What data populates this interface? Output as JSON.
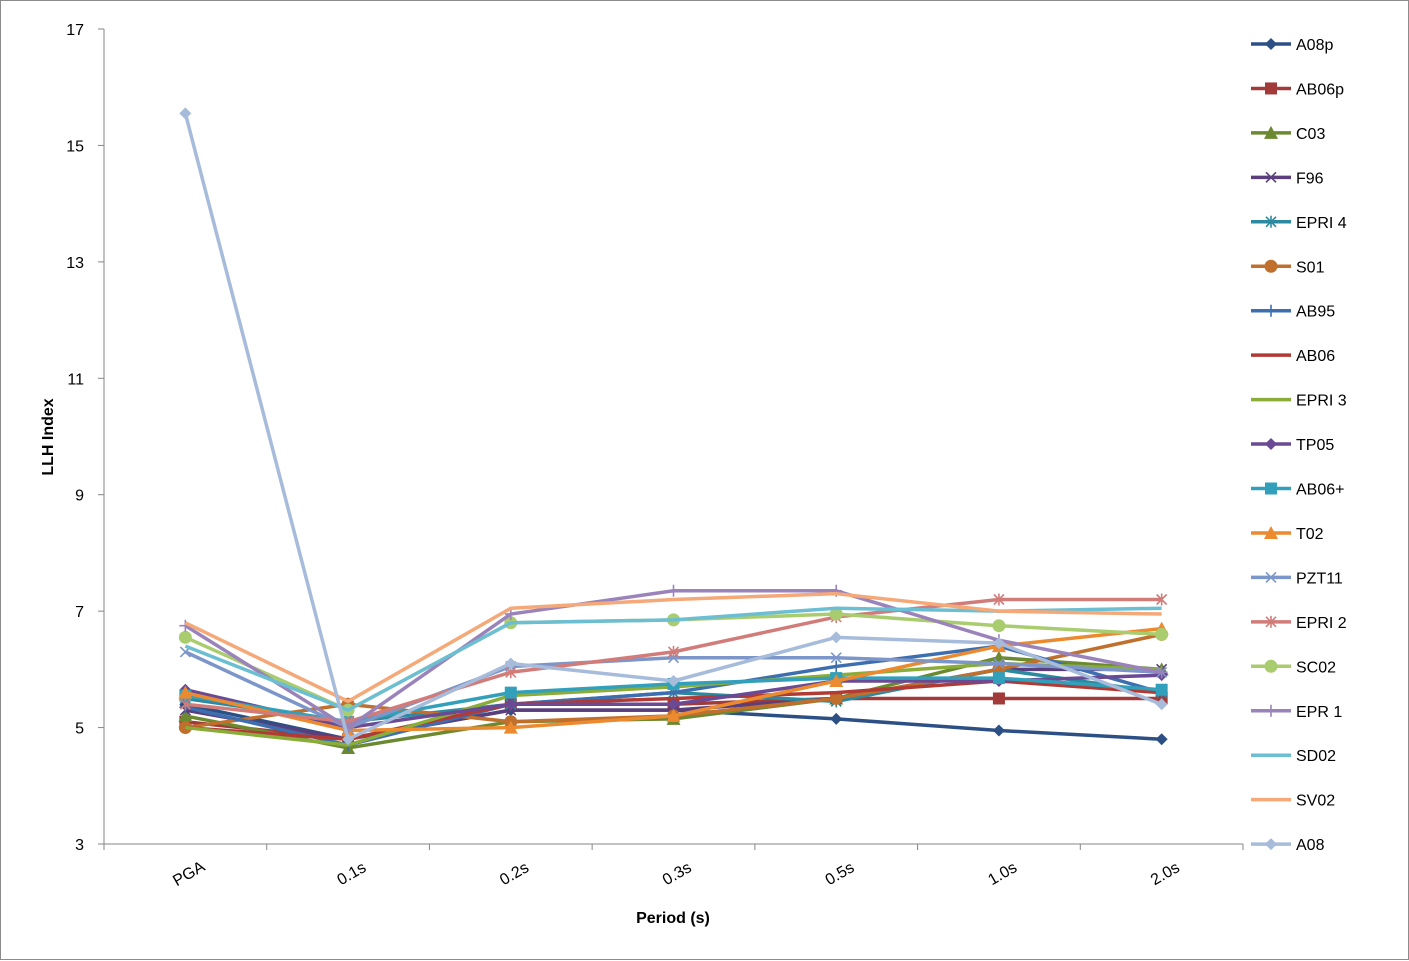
{
  "chart_data": {
    "type": "line",
    "xlabel": "Period (s)",
    "ylabel": "LLH Index",
    "categories": [
      "PGA",
      "0.1s",
      "0.2s",
      "0.3s",
      "0.5s",
      "1.0s",
      "2.0s"
    ],
    "ylim": [
      3,
      17
    ],
    "yticks": [
      3,
      5,
      7,
      9,
      11,
      13,
      15,
      17
    ],
    "grid": false,
    "legend_position": "right",
    "series": [
      {
        "name": "A08p",
        "color": "#2c5085",
        "marker": "diamond",
        "values": [
          5.4,
          4.8,
          5.3,
          5.3,
          5.15,
          4.95,
          4.8
        ]
      },
      {
        "name": "AB06p",
        "color": "#a13a38",
        "marker": "square",
        "values": [
          5.1,
          4.8,
          5.4,
          5.4,
          5.5,
          5.5,
          5.5
        ]
      },
      {
        "name": "C03",
        "color": "#6b8a30",
        "marker": "triangle",
        "values": [
          5.2,
          4.65,
          5.1,
          5.15,
          5.5,
          6.2,
          6.0
        ]
      },
      {
        "name": "F96",
        "color": "#5a3f7c",
        "marker": "x",
        "values": [
          5.3,
          4.8,
          5.3,
          5.3,
          5.5,
          6.0,
          6.0
        ]
      },
      {
        "name": "EPRI 4",
        "color": "#2c8aa0",
        "marker": "asterisk",
        "values": [
          5.5,
          5.1,
          5.4,
          5.6,
          5.45,
          6.0,
          5.6
        ]
      },
      {
        "name": "S01",
        "color": "#c06f2c",
        "marker": "circle",
        "values": [
          5.0,
          5.4,
          5.1,
          5.2,
          5.5,
          6.0,
          6.6
        ]
      },
      {
        "name": "AB95",
        "color": "#3d6eb0",
        "marker": "plus",
        "values": [
          5.35,
          4.7,
          5.4,
          5.6,
          6.05,
          6.4,
          5.6
        ]
      },
      {
        "name": "AB06",
        "color": "#b13b34",
        "marker": "none",
        "values": [
          5.0,
          4.8,
          5.4,
          5.5,
          5.6,
          5.8,
          5.6
        ]
      },
      {
        "name": "EPRI 3",
        "color": "#8aad3a",
        "marker": "none",
        "values": [
          5.0,
          4.7,
          5.55,
          5.7,
          5.9,
          6.1,
          6.0
        ]
      },
      {
        "name": "TP05",
        "color": "#6a4a94",
        "marker": "diamond",
        "values": [
          5.65,
          5.0,
          5.4,
          5.4,
          5.8,
          5.8,
          5.9
        ]
      },
      {
        "name": "AB06+",
        "color": "#33a0bb",
        "marker": "square",
        "values": [
          5.55,
          5.1,
          5.6,
          5.75,
          5.85,
          5.85,
          5.65
        ]
      },
      {
        "name": "T02",
        "color": "#ec8a30",
        "marker": "triangle",
        "values": [
          5.6,
          4.95,
          5.0,
          5.2,
          5.8,
          6.4,
          6.7
        ]
      },
      {
        "name": "PZT11",
        "color": "#7c96c9",
        "marker": "x",
        "values": [
          6.3,
          5.0,
          6.05,
          6.2,
          6.2,
          6.1,
          5.95
        ]
      },
      {
        "name": "EPRI 2",
        "color": "#d27c7a",
        "marker": "asterisk",
        "values": [
          5.4,
          5.1,
          5.95,
          6.3,
          6.9,
          7.2,
          7.2
        ]
      },
      {
        "name": "SC02",
        "color": "#a9cc6e",
        "marker": "circle",
        "values": [
          6.55,
          5.3,
          6.8,
          6.85,
          6.95,
          6.75,
          6.6
        ]
      },
      {
        "name": "EPR 1",
        "color": "#9a83bb",
        "marker": "plus",
        "values": [
          6.75,
          5.0,
          6.95,
          7.35,
          7.35,
          6.5,
          5.95
        ]
      },
      {
        "name": "SD02",
        "color": "#6cbed3",
        "marker": "none",
        "values": [
          6.4,
          5.3,
          6.8,
          6.85,
          7.05,
          7.0,
          7.05
        ]
      },
      {
        "name": "SV02",
        "color": "#f5a878",
        "marker": "none",
        "values": [
          6.8,
          5.45,
          7.05,
          7.2,
          7.3,
          7.0,
          6.95
        ]
      },
      {
        "name": "A08",
        "color": "#a7bbdb",
        "marker": "diamond",
        "values": [
          15.55,
          4.8,
          6.1,
          5.8,
          6.55,
          6.45,
          5.4
        ]
      }
    ]
  }
}
